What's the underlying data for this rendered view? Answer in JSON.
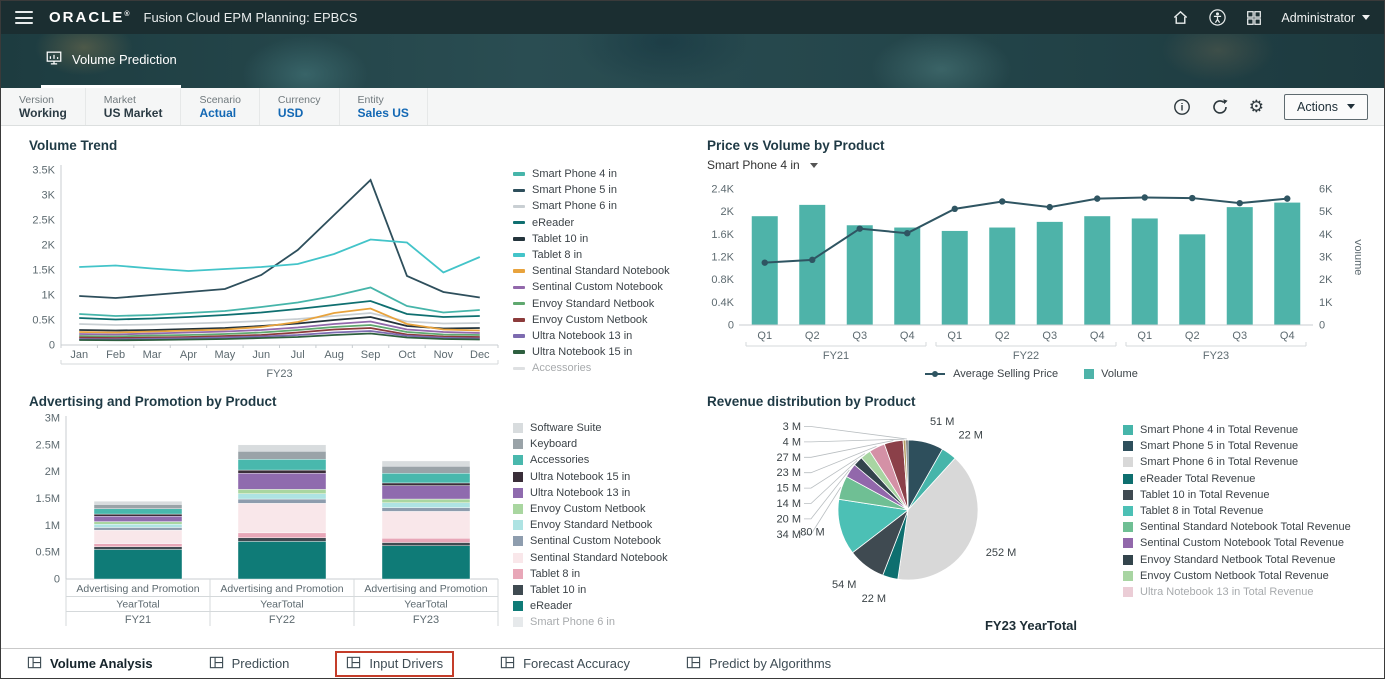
{
  "topbar": {
    "brand": "ORACLE",
    "brand_mark": "®",
    "app_title": "Fusion Cloud EPM Planning:",
    "app_name": "EPBCS",
    "user_label": "Administrator"
  },
  "banner": {
    "tab_label": "Volume Prediction"
  },
  "pov": {
    "items": [
      {
        "label": "Version",
        "value": "Working"
      },
      {
        "label": "Market",
        "value": "US Market"
      },
      {
        "label": "Scenario",
        "value": "Actual"
      },
      {
        "label": "Currency",
        "value": "USD"
      },
      {
        "label": "Entity",
        "value": "Sales US"
      }
    ],
    "actions_label": "Actions"
  },
  "icons": {
    "gear": "⚙"
  },
  "chart_data": [
    {
      "id": "volume-trend",
      "type": "line",
      "title": "Volume Trend",
      "xlabel": "FY23",
      "x": [
        "Jan",
        "Feb",
        "Mar",
        "Apr",
        "May",
        "Jun",
        "Jul",
        "Aug",
        "Sep",
        "Oct",
        "Nov",
        "Dec"
      ],
      "ylim": [
        0,
        3500
      ],
      "yticks": [
        "0",
        "0.5K",
        "1K",
        "1.5K",
        "2K",
        "2.5K",
        "3K",
        "3.5K"
      ],
      "series": [
        {
          "name": "Smart Phone 4 in",
          "color": "#46b5aa",
          "values": [
            620,
            580,
            600,
            640,
            680,
            760,
            850,
            980,
            1150,
            780,
            650,
            700
          ]
        },
        {
          "name": "Smart Phone 5 in",
          "color": "#2e4f5c",
          "values": [
            980,
            940,
            1000,
            1060,
            1120,
            1400,
            1900,
            2600,
            3300,
            1380,
            1060,
            950
          ]
        },
        {
          "name": "Smart Phone 6 in",
          "color": "#c9cfd3",
          "values": [
            420,
            400,
            410,
            430,
            450,
            480,
            520,
            580,
            640,
            470,
            430,
            440
          ]
        },
        {
          "name": "eReader",
          "color": "#0f6f70",
          "values": [
            540,
            510,
            530,
            560,
            600,
            650,
            720,
            800,
            880,
            620,
            560,
            580
          ]
        },
        {
          "name": "Tablet 10 in",
          "color": "#24343c",
          "values": [
            300,
            290,
            300,
            320,
            340,
            380,
            430,
            500,
            560,
            380,
            330,
            340
          ]
        },
        {
          "name": "Tablet 8 in",
          "color": "#43c4c9",
          "values": [
            1560,
            1590,
            1530,
            1480,
            1520,
            1560,
            1620,
            1820,
            2110,
            2050,
            1450,
            1760
          ]
        },
        {
          "name": "Sentinal Standard Notebook",
          "color": "#e8a33d",
          "values": [
            260,
            250,
            270,
            290,
            310,
            360,
            460,
            640,
            730,
            420,
            310,
            290
          ]
        },
        {
          "name": "Sentinal Custom Notebook",
          "color": "#9268ab",
          "values": [
            220,
            210,
            230,
            250,
            270,
            300,
            350,
            420,
            470,
            310,
            260,
            240
          ]
        },
        {
          "name": "Envoy Standard Netbook",
          "color": "#5fa86f",
          "values": [
            180,
            170,
            190,
            200,
            220,
            250,
            300,
            360,
            400,
            260,
            210,
            200
          ]
        },
        {
          "name": "Envoy Custom Netbook",
          "color": "#8c3b3b",
          "values": [
            150,
            140,
            150,
            160,
            180,
            200,
            250,
            310,
            340,
            210,
            170,
            160
          ]
        },
        {
          "name": "Ultra Notebook 13 in",
          "color": "#7d6bb0",
          "values": [
            120,
            115,
            125,
            135,
            150,
            170,
            200,
            250,
            280,
            185,
            145,
            130
          ]
        },
        {
          "name": "Ultra Notebook 15 in",
          "color": "#2d5f3f",
          "values": [
            100,
            95,
            100,
            110,
            120,
            140,
            160,
            200,
            230,
            150,
            120,
            110
          ]
        },
        {
          "name": "Accessories",
          "color": "#b7bcbf",
          "disabled": true,
          "values": null
        }
      ]
    },
    {
      "id": "price-volume",
      "type": "combo",
      "title": "Price vs Volume by Product",
      "filter": "Smart Phone 4 in",
      "quarters": [
        "Q1",
        "Q2",
        "Q3",
        "Q4"
      ],
      "groups": [
        "FY21",
        "FY22",
        "FY23"
      ],
      "left_ylim": [
        0,
        2400
      ],
      "left_yticks": [
        "0",
        "0.4K",
        "0.8K",
        "1.2K",
        "1.6K",
        "2K",
        "2.4K"
      ],
      "right_ylim": [
        0,
        6000
      ],
      "right_yticks": [
        "0",
        "1K",
        "2K",
        "3K",
        "4K",
        "5K",
        "6K"
      ],
      "right_ylabel": "Volume",
      "bar_series": {
        "name": "Volume",
        "color": "#4eb3a9",
        "values": [
          4800,
          5300,
          4400,
          4300,
          4150,
          4300,
          4550,
          4800,
          4700,
          4000,
          5200,
          5400
        ]
      },
      "line_series": {
        "name": "Average Selling Price",
        "color": "#2f5562",
        "values": [
          1100,
          1150,
          1700,
          1620,
          2050,
          2180,
          2080,
          2230,
          2250,
          2240,
          2150,
          2230
        ]
      }
    },
    {
      "id": "adv-promo",
      "type": "stacked_bar",
      "title": "Advertising and Promotion by Product",
      "row1": "Advertising and Promotion",
      "row2": "YearTotal",
      "groups": [
        "FY21",
        "FY22",
        "FY23"
      ],
      "ylim": [
        0,
        3000000
      ],
      "yticks": [
        "0",
        "0.5M",
        "1M",
        "1.5M",
        "2M",
        "2.5M",
        "3M"
      ],
      "series": [
        {
          "name": "eReader",
          "color": "#0f7b77",
          "values": [
            550000,
            700000,
            620000
          ]
        },
        {
          "name": "Tablet 10 in",
          "color": "#3f4a51",
          "values": [
            50000,
            70000,
            60000
          ]
        },
        {
          "name": "Tablet 8 in",
          "color": "#e8a7b8",
          "values": [
            60000,
            90000,
            80000
          ]
        },
        {
          "name": "Sentinal Standard Notebook",
          "color": "#f9e7ea",
          "values": [
            250000,
            550000,
            500000
          ]
        },
        {
          "name": "Sentinal Custom Notebook",
          "color": "#8e9dae",
          "values": [
            50000,
            80000,
            70000
          ]
        },
        {
          "name": "Envoy Standard Netbook",
          "color": "#aee3e3",
          "values": [
            60000,
            100000,
            90000
          ]
        },
        {
          "name": "Envoy Custom Netbook",
          "color": "#a9d6a0",
          "values": [
            50000,
            80000,
            70000
          ]
        },
        {
          "name": "Ultra Notebook 13 in",
          "color": "#8f6bae",
          "values": [
            100000,
            300000,
            250000
          ]
        },
        {
          "name": "Ultra Notebook 15 in",
          "color": "#3a2e39",
          "values": [
            40000,
            60000,
            50000
          ]
        },
        {
          "name": "Accessories",
          "color": "#49b8ad",
          "values": [
            100000,
            200000,
            180000
          ]
        },
        {
          "name": "Keyboard",
          "color": "#9aa3a8",
          "values": [
            80000,
            150000,
            130000
          ]
        },
        {
          "name": "Software Suite",
          "color": "#d8dcde",
          "values": [
            60000,
            120000,
            100000
          ]
        }
      ],
      "legend": [
        {
          "name": "Software Suite",
          "color": "#d8dcde"
        },
        {
          "name": "Keyboard",
          "color": "#9aa3a8"
        },
        {
          "name": "Accessories",
          "color": "#49b8ad"
        },
        {
          "name": "Ultra Notebook 15 in",
          "color": "#3a2e39"
        },
        {
          "name": "Ultra Notebook 13 in",
          "color": "#8f6bae"
        },
        {
          "name": "Envoy Custom Netbook",
          "color": "#a9d6a0"
        },
        {
          "name": "Envoy Standard Netbook",
          "color": "#aee3e3"
        },
        {
          "name": "Sentinal Custom Notebook",
          "color": "#8e9dae"
        },
        {
          "name": "Sentinal Standard Notebook",
          "color": "#f9e7ea"
        },
        {
          "name": "Tablet 8 in",
          "color": "#e8a7b8"
        },
        {
          "name": "Tablet 10 in",
          "color": "#3f4a51"
        },
        {
          "name": "eReader",
          "color": "#0f7b77"
        },
        {
          "name": "Smart Phone 6 in",
          "color": "#c9cfd3",
          "disabled": true
        }
      ]
    },
    {
      "id": "revenue-pie",
      "type": "pie",
      "title": "Revenue distribution by Product",
      "caption": "FY23 YearTotal",
      "slices": [
        {
          "label": "51 M",
          "value": 51,
          "color": "#2e4f5c"
        },
        {
          "label": "22 M",
          "value": 22,
          "color": "#46b5aa"
        },
        {
          "label": "252 M",
          "value": 252,
          "color": "#d8d8d8"
        },
        {
          "label": "22 M",
          "value": 22,
          "color": "#0e6f6f"
        },
        {
          "label": "54 M",
          "value": 54,
          "color": "#3f4a51"
        },
        {
          "label": "80 M",
          "value": 80,
          "color": "#4cc0b5"
        },
        {
          "label": "34 M",
          "value": 34,
          "color": "#6fbf94"
        },
        {
          "label": "20 M",
          "value": 20,
          "color": "#9268ab"
        },
        {
          "label": "14 M",
          "value": 14,
          "color": "#33444c"
        },
        {
          "label": "15 M",
          "value": 15,
          "color": "#a8d5a2"
        },
        {
          "label": "23 M",
          "value": 23,
          "color": "#d491a6"
        },
        {
          "label": "27 M",
          "value": 27,
          "color": "#8b4049"
        },
        {
          "label": "4 M",
          "value": 4,
          "color": "#b59e63"
        },
        {
          "label": "3 M",
          "value": 3,
          "color": "#4b4f52"
        }
      ],
      "legend": [
        {
          "name": "Smart Phone 4 in Total Revenue",
          "color": "#46b5aa"
        },
        {
          "name": "Smart Phone 5 in Total Revenue",
          "color": "#2e4f5c"
        },
        {
          "name": "Smart Phone 6 in Total Revenue",
          "color": "#d8d8d8"
        },
        {
          "name": "eReader Total Revenue",
          "color": "#0e6f6f"
        },
        {
          "name": "Tablet 10 in Total Revenue",
          "color": "#3f4a51"
        },
        {
          "name": "Tablet 8 in Total Revenue",
          "color": "#4cc0b5"
        },
        {
          "name": "Sentinal Standard Notebook Total Revenue",
          "color": "#6fbf94"
        },
        {
          "name": "Sentinal Custom Notebook Total Revenue",
          "color": "#9268ab"
        },
        {
          "name": "Envoy Standard Netbook Total Revenue",
          "color": "#33444c"
        },
        {
          "name": "Envoy Custom Netbook Total Revenue",
          "color": "#a8d5a2"
        },
        {
          "name": "Ultra Notebook 13 in Total Revenue",
          "color": "#d491a6",
          "disabled": true
        }
      ]
    }
  ],
  "tabs": {
    "items": [
      {
        "label": "Volume Analysis",
        "active": true
      },
      {
        "label": "Prediction"
      },
      {
        "label": "Input Drivers",
        "annotated": true
      },
      {
        "label": "Forecast Accuracy"
      },
      {
        "label": "Predict by Algorithms"
      }
    ]
  }
}
